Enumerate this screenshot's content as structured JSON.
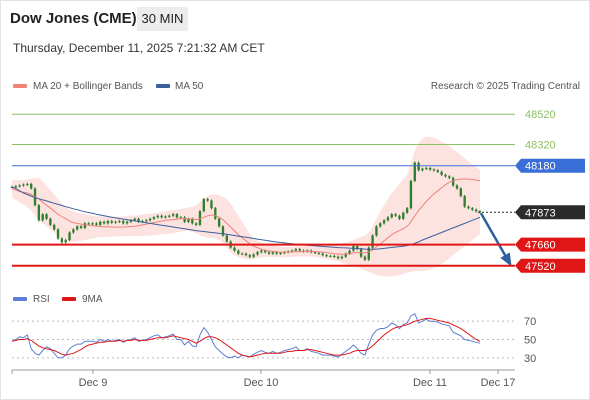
{
  "header": {
    "title": "Dow Jones (CME)",
    "timeframe": "30 MIN",
    "datetime": "Thursday, December 11, 2025 7:21:32 AM CET"
  },
  "legend": {
    "ma20": "MA 20 + Bollinger Bands",
    "ma50": "MA 50",
    "credit": "Research © 2025 Trading Central",
    "rsi": "RSI",
    "ma9": "9MA"
  },
  "colors": {
    "ma20": "#f0827a",
    "ma50": "#3a5f9e",
    "bollinger_fill": "#fbd9d6",
    "green_level": "#8cc063",
    "blue_level": "#3a6fd8",
    "red_level": "#e01515",
    "last_price": "#2b2b2b",
    "candle": "#2f7d2f",
    "rsi": "#5b7fd6",
    "rsi_ma": "#e01515",
    "arrow": "#2f5f9e"
  },
  "chart_data": [
    {
      "type": "candlestick",
      "x_ticks": [
        "Dec 9",
        "Dec 10",
        "Dec 11",
        "Dec 17"
      ],
      "ylim": [
        47400,
        48640
      ],
      "levels": [
        {
          "value": 48520,
          "label": "48520",
          "kind": "resistance-2"
        },
        {
          "value": 48320,
          "label": "48320",
          "kind": "resistance-1"
        },
        {
          "value": 48180,
          "label": "48180",
          "kind": "pivot"
        },
        {
          "value": 47873,
          "label": "47873",
          "kind": "last"
        },
        {
          "value": 47660,
          "label": "47660",
          "kind": "support-1"
        },
        {
          "value": 47520,
          "label": "47520",
          "kind": "support-2"
        }
      ],
      "close": [
        48040,
        48045,
        48050,
        48055,
        48060,
        48030,
        47920,
        47820,
        47860,
        47830,
        47790,
        47760,
        47700,
        47675,
        47690,
        47740,
        47760,
        47780,
        47770,
        47800,
        47795,
        47800,
        47790,
        47810,
        47800,
        47815,
        47805,
        47810,
        47815,
        47800,
        47810,
        47820,
        47830,
        47810,
        47815,
        47820,
        47830,
        47840,
        47850,
        47840,
        47845,
        47850,
        47860,
        47840,
        47840,
        47810,
        47830,
        47800,
        47790,
        47880,
        47960,
        47950,
        47900,
        47830,
        47780,
        47720,
        47680,
        47640,
        47620,
        47600,
        47600,
        47590,
        47580,
        47595,
        47610,
        47620,
        47610,
        47600,
        47610,
        47600,
        47605,
        47610,
        47615,
        47620,
        47630,
        47620,
        47615,
        47620,
        47610,
        47605,
        47600,
        47590,
        47585,
        47585,
        47580,
        47570,
        47580,
        47600,
        47620,
        47650,
        47630,
        47580,
        47560,
        47640,
        47720,
        47780,
        47800,
        47820,
        47840,
        47860,
        47850,
        47830,
        47870,
        47900,
        48080,
        48200,
        48150,
        48160,
        48165,
        48155,
        48150,
        48140,
        48120,
        48110,
        48100,
        48050,
        48030,
        47980,
        47910,
        47900,
        47890,
        47880,
        47873
      ],
      "ma20": [
        48030,
        48020,
        48010,
        48005,
        48000,
        47990,
        47975,
        47960,
        47940,
        47920,
        47900,
        47880,
        47860,
        47845,
        47830,
        47815,
        47805,
        47800,
        47795,
        47790,
        47788,
        47785,
        47782,
        47780,
        47778,
        47777,
        47776,
        47775,
        47775,
        47776,
        47777,
        47779,
        47781,
        47785,
        47790,
        47795,
        47800,
        47805,
        47810,
        47815,
        47820,
        47822,
        47825,
        47828,
        47830,
        47832,
        47830,
        47828,
        47825,
        47830,
        47840,
        47850,
        47855,
        47850,
        47840,
        47825,
        47800,
        47775,
        47750,
        47725,
        47705,
        47685,
        47665,
        47650,
        47640,
        47630,
        47622,
        47618,
        47615,
        47612,
        47610,
        47610,
        47611,
        47612,
        47613,
        47614,
        47615,
        47616,
        47615,
        47614,
        47612,
        47610,
        47607,
        47604,
        47600,
        47598,
        47596,
        47597,
        47600,
        47605,
        47608,
        47607,
        47605,
        47610,
        47625,
        47645,
        47665,
        47685,
        47705,
        47725,
        47740,
        47752,
        47765,
        47780,
        47810,
        47850,
        47885,
        47915,
        47945,
        47970,
        47995,
        48015,
        48035,
        48055,
        48070,
        48080,
        48088,
        48092,
        48093,
        48092,
        48089,
        48085,
        48080
      ],
      "bb_upper": [
        48090,
        48085,
        48085,
        48085,
        48090,
        48095,
        48100,
        48100,
        48080,
        48050,
        48020,
        47990,
        47960,
        47930,
        47910,
        47890,
        47880,
        47870,
        47865,
        47860,
        47855,
        47850,
        47845,
        47845,
        47845,
        47845,
        47845,
        47845,
        47845,
        47845,
        47848,
        47850,
        47852,
        47855,
        47860,
        47862,
        47865,
        47868,
        47870,
        47875,
        47880,
        47885,
        47890,
        47892,
        47895,
        47900,
        47905,
        47910,
        47920,
        47940,
        47960,
        47980,
        47990,
        47990,
        47985,
        47975,
        47960,
        47930,
        47890,
        47850,
        47810,
        47770,
        47730,
        47700,
        47685,
        47675,
        47665,
        47660,
        47655,
        47650,
        47648,
        47645,
        47645,
        47645,
        47645,
        47648,
        47650,
        47652,
        47650,
        47650,
        47650,
        47650,
        47652,
        47655,
        47660,
        47665,
        47670,
        47675,
        47680,
        47690,
        47700,
        47710,
        47720,
        47740,
        47780,
        47830,
        47880,
        47920,
        47960,
        48000,
        48030,
        48060,
        48090,
        48120,
        48200,
        48280,
        48330,
        48360,
        48370,
        48370,
        48365,
        48355,
        48340,
        48325,
        48310,
        48290,
        48270,
        48250,
        48230,
        48210,
        48190,
        48170,
        48150
      ],
      "bb_lower": [
        47970,
        47955,
        47935,
        47925,
        47910,
        47885,
        47850,
        47820,
        47800,
        47780,
        47760,
        47740,
        47720,
        47700,
        47690,
        47680,
        47678,
        47680,
        47685,
        47690,
        47695,
        47700,
        47705,
        47708,
        47710,
        47712,
        47712,
        47713,
        47714,
        47715,
        47716,
        47716,
        47716,
        47715,
        47716,
        47718,
        47720,
        47722,
        47725,
        47728,
        47730,
        47732,
        47735,
        47740,
        47745,
        47750,
        47750,
        47745,
        47735,
        47720,
        47710,
        47705,
        47705,
        47700,
        47690,
        47670,
        47640,
        47610,
        47590,
        47580,
        47570,
        47565,
        47560,
        47565,
        47570,
        47575,
        47578,
        47580,
        47580,
        47578,
        47576,
        47575,
        47577,
        47579,
        47581,
        47582,
        47582,
        47582,
        47580,
        47578,
        47575,
        47570,
        47565,
        47560,
        47555,
        47550,
        47540,
        47530,
        47520,
        47515,
        47510,
        47500,
        47490,
        47480,
        47470,
        47460,
        47455,
        47450,
        47450,
        47450,
        47455,
        47460,
        47465,
        47475,
        47480,
        47485,
        47485,
        47485,
        47490,
        47495,
        47505,
        47515,
        47530,
        47550,
        47570,
        47590,
        47610,
        47630,
        47650,
        47670,
        47690,
        47710,
        47730
      ],
      "ma50": [
        48040,
        48030,
        48015,
        48000,
        47990,
        47980,
        47970,
        47962,
        47955,
        47948,
        47940,
        47932,
        47925,
        47918,
        47910,
        47903,
        47896,
        47890,
        47883,
        47877,
        47871,
        47866,
        47860,
        47855,
        47850,
        47845,
        47840,
        47836,
        47832,
        47828,
        47824,
        47820,
        47816,
        47812,
        47808,
        47804,
        47800,
        47796,
        47792,
        47788,
        47784,
        47780,
        47776,
        47772,
        47768,
        47764,
        47760,
        47756,
        47752,
        47749,
        47746,
        47743,
        47740,
        47737,
        47734,
        47731,
        47728,
        47724,
        47720,
        47716,
        47712,
        47708,
        47704,
        47700,
        47696,
        47692,
        47688,
        47684,
        47680,
        47677,
        47674,
        47671,
        47668,
        47665,
        47662,
        47660,
        47658,
        47656,
        47654,
        47652,
        47650,
        47648,
        47646,
        47644,
        47642,
        47640,
        47639,
        47638,
        47637,
        47636,
        47634,
        47632,
        47630,
        47629,
        47629,
        47630,
        47632,
        47635,
        47638,
        47641,
        47644,
        47647,
        47650,
        47654,
        47660,
        47668,
        47678,
        47690,
        47700,
        47710,
        47720,
        47730,
        47740,
        47750,
        47760,
        47770,
        47780,
        47790,
        47800,
        47810,
        47820,
        47830,
        47840
      ],
      "forecast": {
        "from": 47873,
        "to": 47520
      }
    },
    {
      "type": "line",
      "series": [
        {
          "name": "RSI"
        },
        {
          "name": "9MA"
        }
      ],
      "yticks": [
        70,
        50,
        30
      ],
      "ylim": [
        20,
        80
      ],
      "rsi": [
        48,
        50,
        53,
        52,
        55,
        40,
        35,
        33,
        38,
        42,
        40,
        35,
        30,
        30,
        33,
        40,
        43,
        45,
        45,
        48,
        48,
        48,
        47,
        50,
        48,
        50,
        48,
        49,
        50,
        47,
        49,
        50,
        52,
        48,
        49,
        50,
        52,
        54,
        55,
        52,
        53,
        54,
        56,
        50,
        50,
        44,
        48,
        43,
        42,
        55,
        63,
        58,
        50,
        42,
        38,
        34,
        31,
        30,
        32,
        30,
        33,
        32,
        31,
        34,
        36,
        38,
        36,
        35,
        37,
        35,
        36,
        38,
        39,
        40,
        42,
        38,
        38,
        40,
        37,
        36,
        35,
        33,
        33,
        33,
        32,
        31,
        34,
        37,
        40,
        44,
        40,
        35,
        33,
        45,
        55,
        60,
        62,
        62,
        64,
        68,
        66,
        62,
        66,
        68,
        76,
        78,
        68,
        70,
        72,
        70,
        70,
        69,
        67,
        66,
        65,
        58,
        56,
        54,
        50,
        49,
        48,
        47,
        46
      ],
      "rsi_ma": [
        48,
        49,
        50,
        50,
        51,
        49,
        46,
        43,
        41,
        40,
        39,
        38,
        36,
        34,
        33,
        34,
        35,
        37,
        39,
        42,
        44,
        45,
        46,
        47,
        47,
        48,
        48,
        48,
        49,
        48,
        49,
        49,
        50,
        49,
        49,
        49,
        50,
        51,
        52,
        52,
        52,
        53,
        54,
        53,
        52,
        51,
        50,
        48,
        46,
        48,
        51,
        53,
        53,
        52,
        50,
        47,
        44,
        41,
        38,
        35,
        33,
        32,
        31,
        32,
        33,
        34,
        35,
        35,
        35,
        35,
        35,
        36,
        37,
        37,
        38,
        38,
        38,
        39,
        39,
        38,
        37,
        36,
        35,
        34,
        33,
        33,
        33,
        34,
        35,
        37,
        38,
        38,
        38,
        40,
        43,
        47,
        51,
        55,
        58,
        61,
        63,
        64,
        65,
        66,
        68,
        70,
        71,
        72,
        73,
        73,
        72,
        71,
        70,
        69,
        68,
        66,
        64,
        62,
        59,
        56,
        53,
        50,
        48
      ]
    }
  ]
}
